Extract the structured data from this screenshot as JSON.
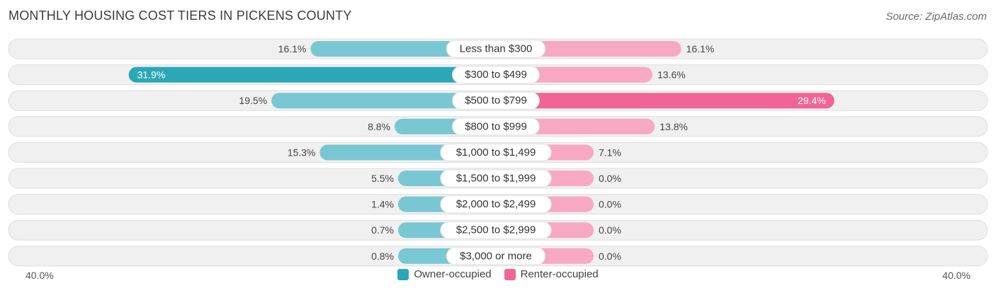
{
  "header": {
    "title": "MONTHLY HOUSING COST TIERS IN PICKENS COUNTY",
    "source": "Source: ZipAtlas.com"
  },
  "axis": {
    "left_label": "40.0%",
    "right_label": "40.0%"
  },
  "legend": {
    "owner_label": "Owner-occupied",
    "renter_label": "Renter-occupied"
  },
  "colors": {
    "owner": "#2ba7b8",
    "owner_light": "#79c7d2",
    "renter": "#f06595",
    "renter_light": "#f7a8c2",
    "track": "#f0f0f0",
    "track_border": "#dedede"
  },
  "chart_data": {
    "type": "bar",
    "orientation": "horizontal-diverging",
    "title": "MONTHLY HOUSING COST TIERS IN PICKENS COUNTY",
    "xlim": [
      -40,
      40
    ],
    "categories": [
      "Less than $300",
      "$300 to $499",
      "$500 to $799",
      "$800 to $999",
      "$1,000 to $1,499",
      "$1,500 to $1,999",
      "$2,000 to $2,499",
      "$2,500 to $2,999",
      "$3,000 or more"
    ],
    "series": [
      {
        "name": "Owner-occupied",
        "values": [
          16.1,
          31.9,
          19.5,
          8.8,
          15.3,
          5.5,
          1.4,
          0.7,
          0.8
        ],
        "labels": [
          "16.1%",
          "31.9%",
          "19.5%",
          "8.8%",
          "15.3%",
          "5.5%",
          "1.4%",
          "0.7%",
          "0.8%"
        ]
      },
      {
        "name": "Renter-occupied",
        "values": [
          16.1,
          13.6,
          29.4,
          13.8,
          7.1,
          0.0,
          0.0,
          0.0,
          0.0
        ],
        "labels": [
          "16.1%",
          "13.6%",
          "29.4%",
          "13.8%",
          "7.1%",
          "0.0%",
          "0.0%",
          "0.0%",
          "0.0%"
        ]
      }
    ],
    "legend": "bottom-center",
    "grid": false
  }
}
